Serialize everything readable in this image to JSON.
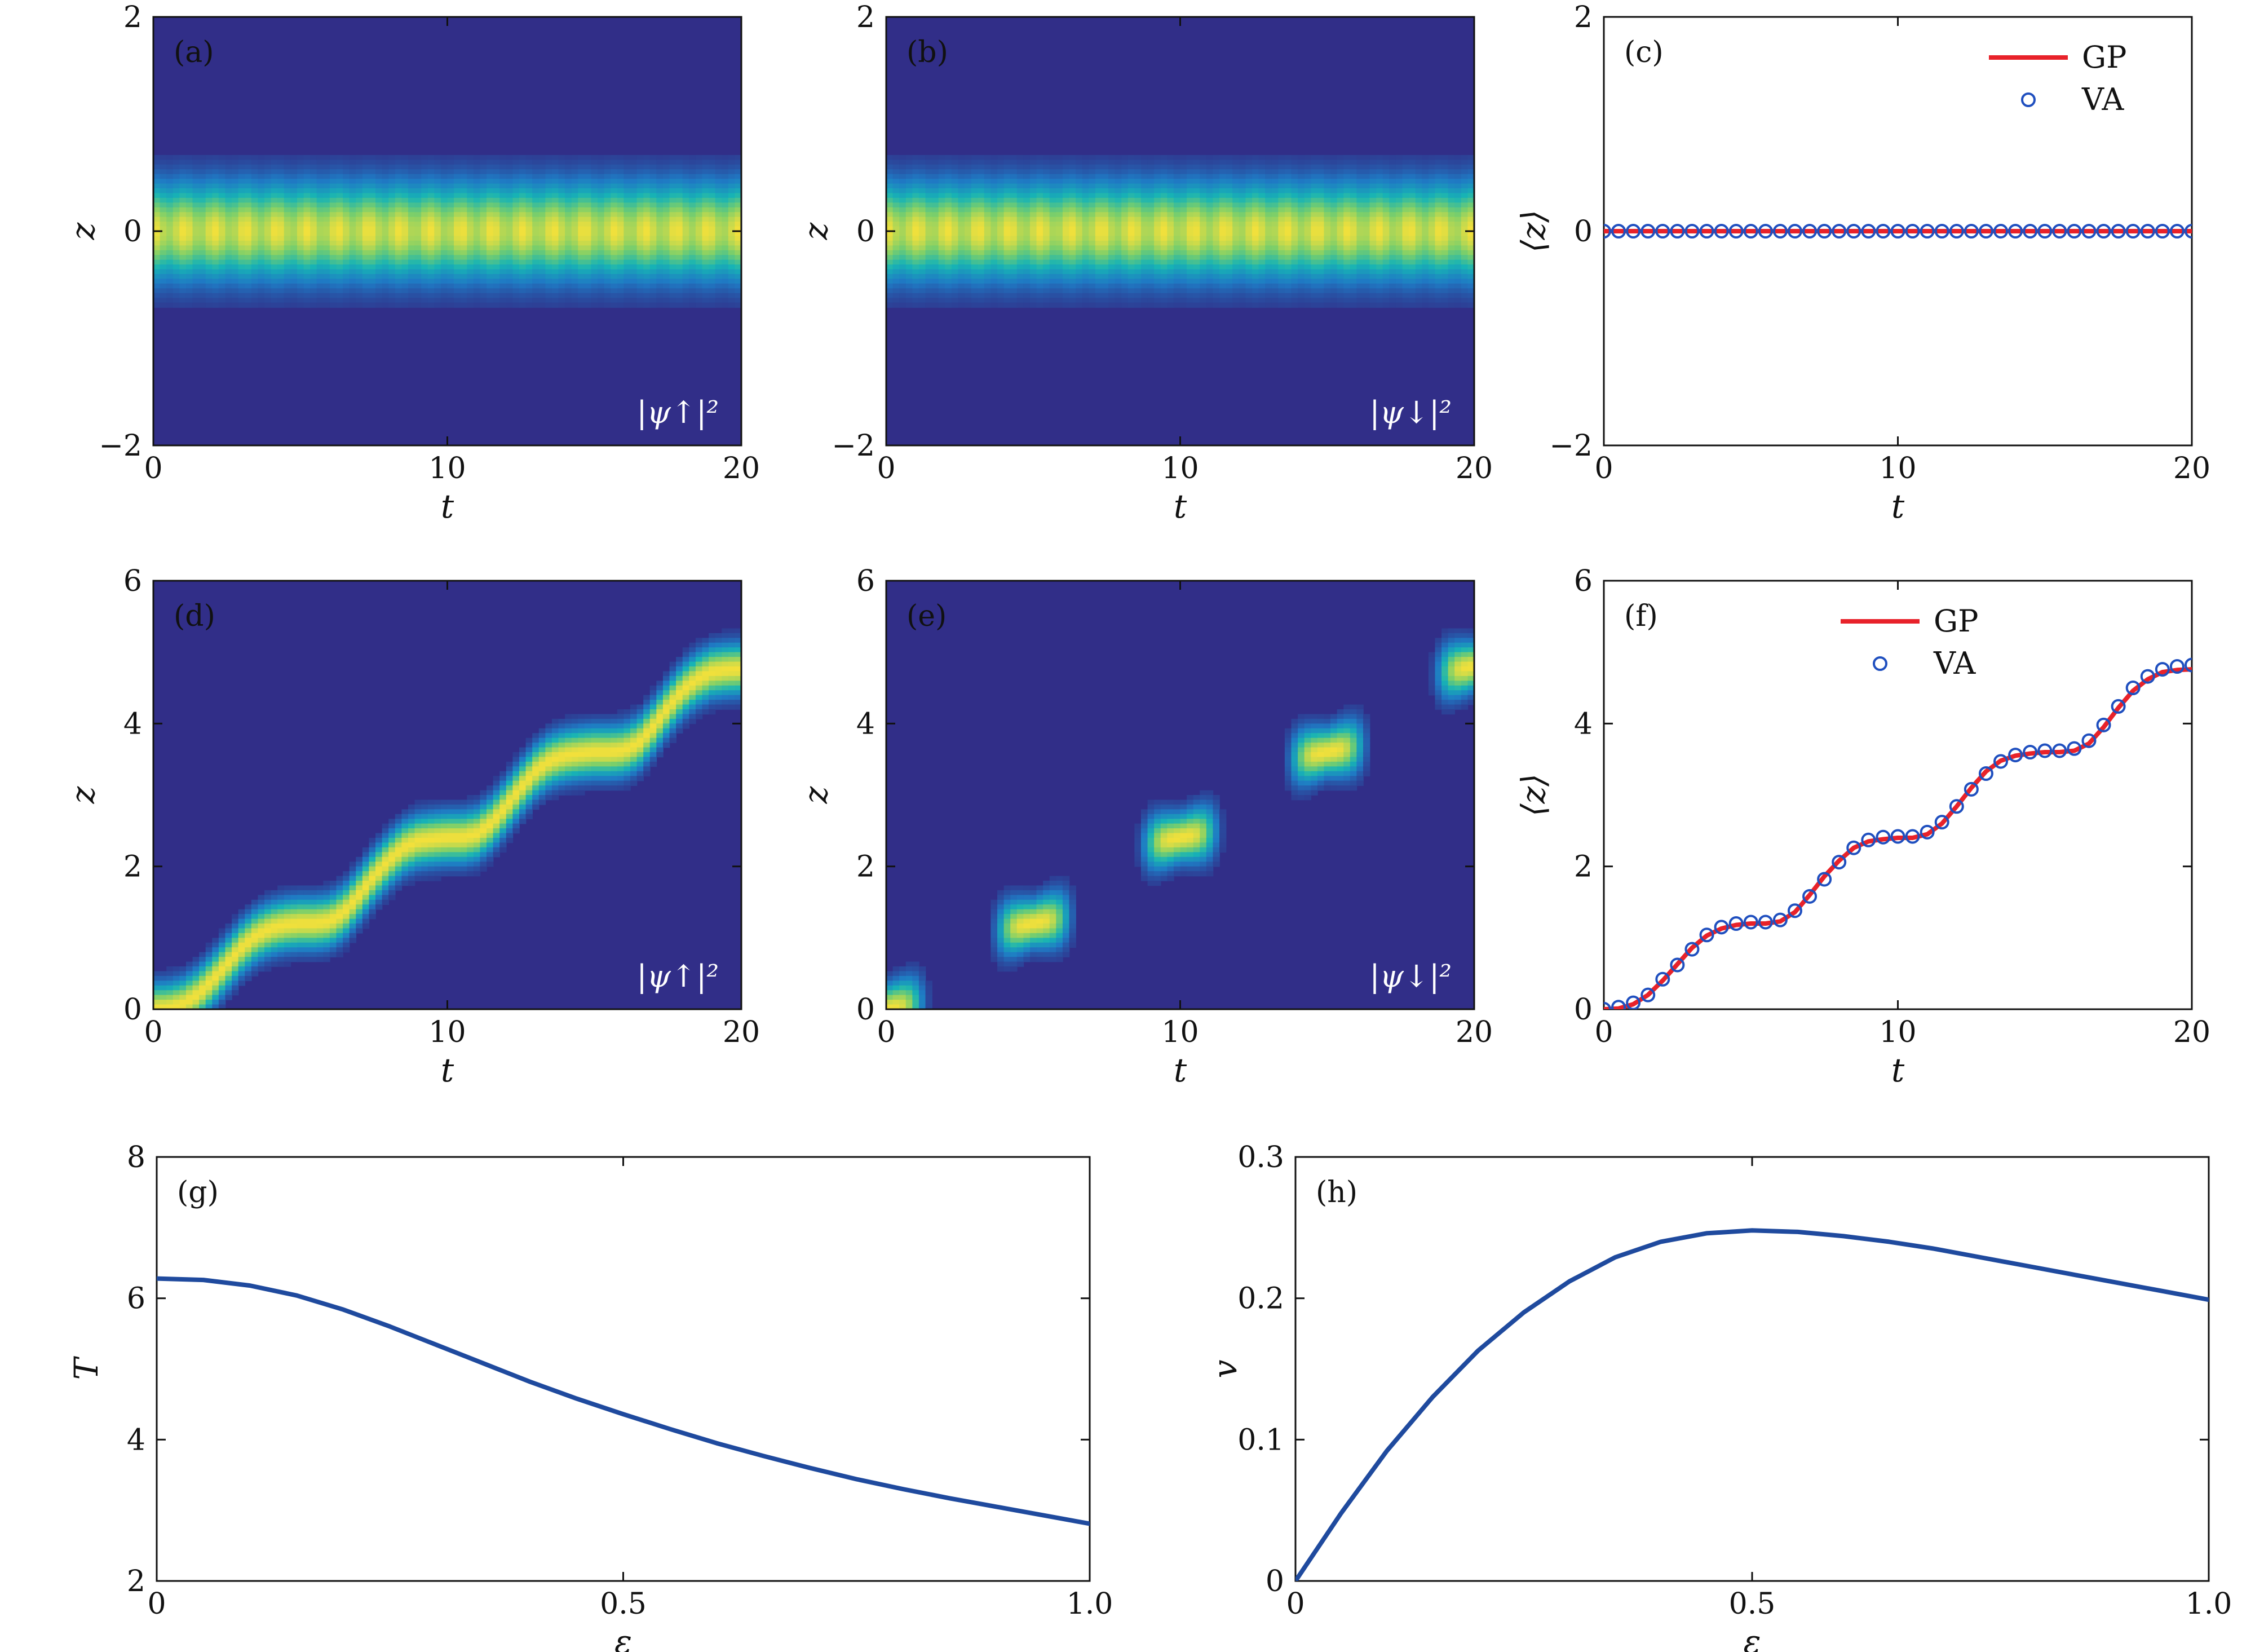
{
  "colors": {
    "heatmap_background": "#312e88",
    "heatmap_ramp": [
      "#312e88",
      "#1f7ac4",
      "#17b3b5",
      "#7ccf6a",
      "#f2e03b"
    ],
    "gp_line": "#e8222a",
    "va_marker": "#1f4fbf",
    "curve": "#1f4a9e",
    "axis": "#111111"
  },
  "chart_data": [
    {
      "id": "a",
      "tag": "(a)",
      "type": "heatmap",
      "xlabel": "t",
      "ylabel": "z",
      "xlim": [
        0,
        20
      ],
      "ylim": [
        -2,
        2
      ],
      "xticks": [
        "0",
        "10",
        "20"
      ],
      "yticks": [
        "−2",
        "0",
        "2"
      ],
      "yticks_values": [
        -2,
        0,
        2
      ],
      "inset_label": "|ψ↑|²",
      "trajectory": "stationary",
      "center_z": 0,
      "width_z": 0.42
    },
    {
      "id": "b",
      "tag": "(b)",
      "type": "heatmap",
      "xlabel": "t",
      "ylabel": "z",
      "xlim": [
        0,
        20
      ],
      "ylim": [
        -2,
        2
      ],
      "xticks": [
        "0",
        "10",
        "20"
      ],
      "yticks": [
        "−2",
        "0",
        "2"
      ],
      "yticks_values": [
        -2,
        0,
        2
      ],
      "inset_label": "|ψ↓|²",
      "trajectory": "stationary",
      "center_z": 0,
      "width_z": 0.42
    },
    {
      "id": "c",
      "tag": "(c)",
      "type": "line",
      "xlabel": "t",
      "ylabel": "⟨z⟩",
      "xlim": [
        0,
        20
      ],
      "ylim": [
        -2,
        2
      ],
      "xticks": [
        "0",
        "10",
        "20"
      ],
      "yticks": [
        "−2",
        "0",
        "2"
      ],
      "yticks_values": [
        -2,
        0,
        2
      ],
      "legend": [
        "GP",
        "VA"
      ],
      "legend_position": "top-right",
      "series": [
        {
          "name": "GP",
          "style": "line",
          "x": [
            0,
            20
          ],
          "y": [
            0,
            0
          ]
        },
        {
          "name": "VA",
          "style": "markers",
          "x_start": 0,
          "x_step": 0.5,
          "count": 41,
          "y_constant": 0
        }
      ]
    },
    {
      "id": "d",
      "tag": "(d)",
      "type": "heatmap",
      "xlabel": "t",
      "ylabel": "z",
      "xlim": [
        0,
        20
      ],
      "ylim": [
        0,
        6
      ],
      "xticks": [
        "0",
        "10",
        "20"
      ],
      "yticks": [
        "0",
        "2",
        "4",
        "6"
      ],
      "yticks_values": [
        0,
        2,
        4,
        6
      ],
      "inset_label": "|ψ↑|²",
      "trajectory": "continuous",
      "width_z": 0.32
    },
    {
      "id": "e",
      "tag": "(e)",
      "type": "heatmap",
      "xlabel": "t",
      "ylabel": "z",
      "xlim": [
        0,
        20
      ],
      "ylim": [
        0,
        6
      ],
      "xticks": [
        "0",
        "10",
        "20"
      ],
      "yticks": [
        "0",
        "2",
        "4",
        "6"
      ],
      "yticks_values": [
        0,
        2,
        4,
        6
      ],
      "inset_label": "|ψ↓|²",
      "trajectory": "pulsed",
      "width_z": 0.3
    },
    {
      "id": "f",
      "tag": "(f)",
      "type": "line",
      "xlabel": "t",
      "ylabel": "⟨z⟩",
      "xlim": [
        0,
        20
      ],
      "ylim": [
        0,
        6
      ],
      "xticks": [
        "0",
        "10",
        "20"
      ],
      "yticks": [
        "0",
        "2",
        "4",
        "6"
      ],
      "yticks_values": [
        0,
        2,
        4,
        6
      ],
      "legend": [
        "GP",
        "VA"
      ],
      "legend_position": "top-center",
      "series": [
        {
          "name": "GP",
          "style": "line",
          "x": [
            0,
            0.5,
            1,
            1.5,
            2,
            2.5,
            3,
            3.5,
            4,
            4.5,
            5,
            5.5,
            6,
            6.5,
            7,
            7.5,
            8,
            8.5,
            9,
            9.5,
            10,
            10.5,
            11,
            11.5,
            12,
            12.5,
            13,
            13.5,
            14,
            14.5,
            15,
            15.5,
            16,
            16.5,
            17,
            17.5,
            18,
            18.5,
            19,
            19.5,
            20
          ],
          "y": [
            0,
            0.01,
            0.07,
            0.2,
            0.4,
            0.63,
            0.86,
            1.03,
            1.13,
            1.18,
            1.2,
            1.2,
            1.23,
            1.36,
            1.6,
            1.86,
            2.08,
            2.26,
            2.35,
            2.38,
            2.4,
            2.4,
            2.45,
            2.6,
            2.84,
            3.1,
            3.33,
            3.48,
            3.55,
            3.58,
            3.6,
            3.6,
            3.62,
            3.72,
            3.95,
            4.22,
            4.46,
            4.62,
            4.72,
            4.75,
            4.76
          ]
        },
        {
          "name": "VA",
          "style": "markers",
          "x": [
            0,
            0.5,
            1,
            1.5,
            2,
            2.5,
            3,
            3.5,
            4,
            4.5,
            5,
            5.5,
            6,
            6.5,
            7,
            7.5,
            8,
            8.5,
            9,
            9.5,
            10,
            10.5,
            11,
            11.5,
            12,
            12.5,
            13,
            13.5,
            14,
            14.5,
            15,
            15.5,
            16,
            16.5,
            17,
            17.5,
            18,
            18.5,
            19,
            19.5,
            20
          ],
          "y": [
            0,
            0.03,
            0.09,
            0.2,
            0.42,
            0.62,
            0.84,
            1.04,
            1.15,
            1.2,
            1.22,
            1.22,
            1.25,
            1.38,
            1.58,
            1.82,
            2.06,
            2.26,
            2.37,
            2.41,
            2.42,
            2.42,
            2.48,
            2.62,
            2.84,
            3.08,
            3.3,
            3.47,
            3.56,
            3.6,
            3.62,
            3.62,
            3.65,
            3.76,
            3.98,
            4.24,
            4.5,
            4.66,
            4.76,
            4.8,
            4.82
          ]
        }
      ]
    },
    {
      "id": "g",
      "tag": "(g)",
      "type": "line",
      "xlabel": "ε",
      "ylabel": "T",
      "xlim": [
        0,
        1
      ],
      "ylim": [
        2,
        8
      ],
      "xticks": [
        "0",
        "0.5",
        "1.0"
      ],
      "xticks_values": [
        0,
        0.5,
        1
      ],
      "yticks": [
        "2",
        "4",
        "6",
        "8"
      ],
      "yticks_values": [
        2,
        4,
        6,
        8
      ],
      "series": [
        {
          "style": "line",
          "x": [
            0,
            0.05,
            0.1,
            0.15,
            0.2,
            0.25,
            0.3,
            0.35,
            0.4,
            0.45,
            0.5,
            0.55,
            0.6,
            0.65,
            0.7,
            0.75,
            0.8,
            0.85,
            0.9,
            0.95,
            1.0
          ],
          "y": [
            6.28,
            6.26,
            6.18,
            6.04,
            5.84,
            5.6,
            5.34,
            5.08,
            4.82,
            4.58,
            4.36,
            4.15,
            3.95,
            3.77,
            3.6,
            3.44,
            3.3,
            3.17,
            3.05,
            2.93,
            2.81
          ]
        }
      ]
    },
    {
      "id": "h",
      "tag": "(h)",
      "type": "line",
      "xlabel": "ε",
      "ylabel": "v",
      "xlim": [
        0,
        1
      ],
      "ylim": [
        0,
        0.3
      ],
      "xticks": [
        "0",
        "0.5",
        "1.0"
      ],
      "xticks_values": [
        0,
        0.5,
        1
      ],
      "yticks": [
        "0",
        "0.1",
        "0.2",
        "0.3"
      ],
      "yticks_values": [
        0,
        0.1,
        0.2,
        0.3
      ],
      "series": [
        {
          "style": "line",
          "x": [
            0,
            0.05,
            0.1,
            0.15,
            0.2,
            0.25,
            0.3,
            0.35,
            0.4,
            0.45,
            0.5,
            0.55,
            0.6,
            0.65,
            0.7,
            0.75,
            0.8,
            0.85,
            0.9,
            0.95,
            1.0
          ],
          "y": [
            0,
            0.048,
            0.092,
            0.13,
            0.163,
            0.19,
            0.212,
            0.229,
            0.24,
            0.246,
            0.248,
            0.247,
            0.244,
            0.24,
            0.235,
            0.229,
            0.223,
            0.217,
            0.211,
            0.205,
            0.199
          ]
        }
      ]
    }
  ]
}
